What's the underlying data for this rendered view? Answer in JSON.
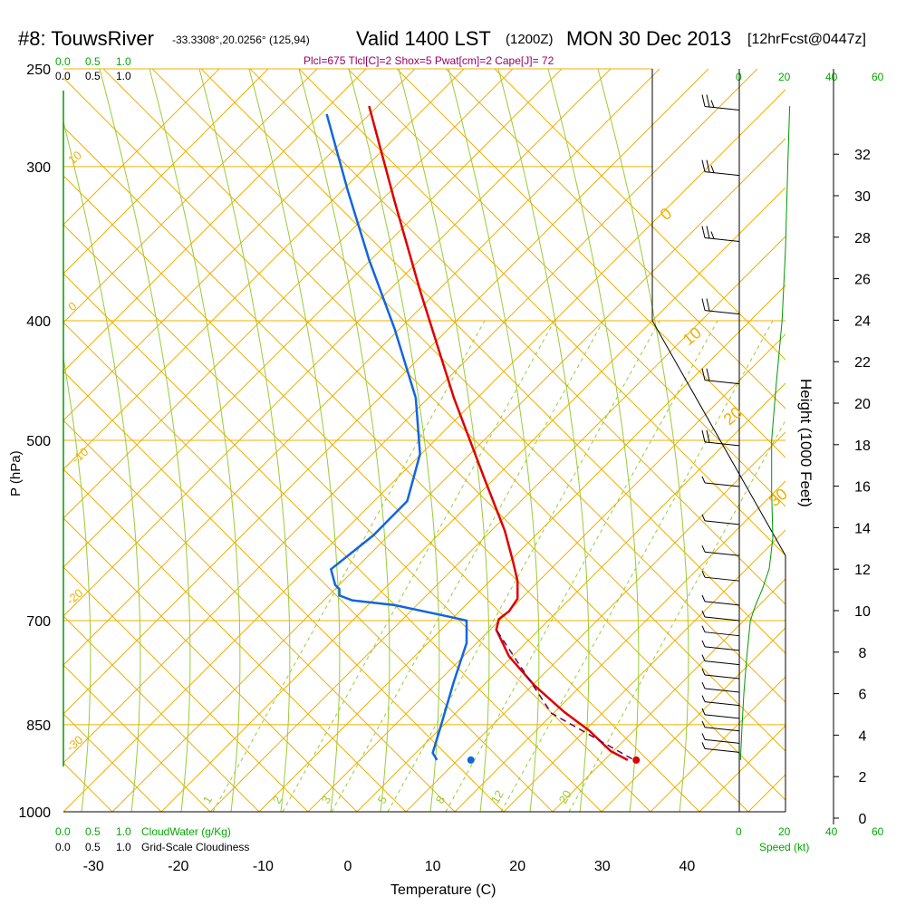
{
  "header": {
    "title": "#8: TouwsRiver",
    "location": "-33.3308°,20.0256° (125,94)",
    "valid": "Valid 1400 LST",
    "utc": "(1200Z)",
    "date": "MON 30 Dec 2013",
    "forecast": "[12hrFcst@0447z]",
    "params": "Plcl=675 Tlcl[C]=2 Shox=5 Pwat[cm]=2 Cape[J]= 72"
  },
  "cloud_scale": {
    "top_green": [
      "0.0",
      "0.5",
      "1.0"
    ],
    "top_black": [
      "0.0",
      "0.5",
      "1.0"
    ],
    "bottom_green": [
      "0.0",
      "0.5",
      "1.0"
    ],
    "bottom_green_label": "CloudWater (g/Kg)",
    "bottom_black": [
      "0.0",
      "0.5",
      "1.0"
    ],
    "bottom_black_label": "Grid-Scale Cloudiness"
  },
  "speed_scale": {
    "top": [
      "0",
      "20",
      "40",
      "60"
    ],
    "bottom": [
      "0",
      "20",
      "40",
      "60"
    ],
    "label": "Speed (kt)"
  },
  "colors": {
    "isotherm": "#f0b000",
    "adiabat": "#99cc33",
    "temp": "#dd0000",
    "dewpoint": "#1166dd",
    "parcel": "#660066",
    "speed": "#009900",
    "labels_green": "#00aa00",
    "params": "#990066"
  },
  "chart_data": {
    "type": "line",
    "xlabel": "Temperature (C)",
    "ylabel": "P (hPa)",
    "y2label": "Height (1000 Feet)",
    "x_ticks": [
      "-30",
      "-20",
      "-10",
      "0",
      "10",
      "20",
      "30",
      "40"
    ],
    "p_ticks": [
      "250",
      "300",
      "400",
      "500",
      "700",
      "850",
      "1000"
    ],
    "height_ticks": [
      "0",
      "2",
      "4",
      "6",
      "8",
      "10",
      "12",
      "14",
      "16",
      "18",
      "20",
      "22",
      "24",
      "26",
      "28",
      "30",
      "32"
    ],
    "isotherm_labels": [
      "10",
      "0",
      "-10",
      "-20",
      "-30",
      "0",
      "10",
      "20",
      "30"
    ],
    "mixing_ratio_labels": [
      "1",
      "2",
      "3",
      "5",
      "8",
      "12",
      "20"
    ],
    "surface_temp": 34.0,
    "surface_dewpoint": 14.5,
    "series": [
      {
        "key": "temperature",
        "points": [
          [
            33.0,
            908
          ],
          [
            31.0,
            893
          ],
          [
            28.5,
            860
          ],
          [
            25.5,
            830
          ],
          [
            22.0,
            790
          ],
          [
            19.0,
            748
          ],
          [
            17.5,
            712
          ],
          [
            17.8,
            698
          ],
          [
            19.0,
            688
          ],
          [
            20.0,
            672
          ],
          [
            20.0,
            650
          ],
          [
            19.5,
            628
          ],
          [
            18.5,
            592
          ],
          [
            16.0,
            535
          ],
          [
            12.5,
            462
          ],
          [
            8.5,
            378
          ],
          [
            5.5,
            320
          ],
          [
            2.5,
            268
          ]
        ]
      },
      {
        "key": "dewpoint",
        "points": [
          [
            10.5,
            908
          ],
          [
            10.0,
            896
          ],
          [
            11.0,
            850
          ],
          [
            12.5,
            784
          ],
          [
            14.0,
            730
          ],
          [
            14.0,
            700
          ],
          [
            12.0,
            695
          ],
          [
            5.5,
            680
          ],
          [
            0.5,
            674
          ],
          [
            -1.0,
            668
          ],
          [
            -1.0,
            660
          ],
          [
            -1.5,
            655
          ],
          [
            -2.0,
            636
          ],
          [
            3.0,
            597
          ],
          [
            7.0,
            560
          ],
          [
            8.5,
            513
          ],
          [
            8.0,
            462
          ],
          [
            5.5,
            406
          ],
          [
            2.5,
            357
          ],
          [
            0.0,
            314
          ],
          [
            -2.5,
            272
          ]
        ]
      },
      {
        "key": "parcel",
        "points": [
          [
            33.5,
            906
          ],
          [
            24.0,
            832
          ],
          [
            17.5,
            712
          ]
        ]
      },
      {
        "key": "wind_speed",
        "points": [
          [
            0.5,
            908
          ],
          [
            1.2,
            850
          ],
          [
            2.0,
            800
          ],
          [
            3.2,
            750
          ],
          [
            4.8,
            700
          ],
          [
            7.0,
            680
          ],
          [
            10.0,
            660
          ],
          [
            13.0,
            635
          ],
          [
            14.5,
            600
          ],
          [
            14.0,
            550
          ],
          [
            14.0,
            500
          ],
          [
            16.0,
            450
          ],
          [
            18.5,
            400
          ],
          [
            20.0,
            350
          ],
          [
            21.0,
            300
          ],
          [
            21.8,
            268
          ]
        ]
      }
    ],
    "wind_barbs": [
      {
        "p": 270,
        "kt": 15
      },
      {
        "p": 305,
        "kt": 15
      },
      {
        "p": 345,
        "kt": 15
      },
      {
        "p": 395,
        "kt": 10
      },
      {
        "p": 450,
        "kt": 10
      },
      {
        "p": 505,
        "kt": 10
      },
      {
        "p": 545,
        "kt": 5
      },
      {
        "p": 585,
        "kt": 5
      },
      {
        "p": 620,
        "kt": 5
      },
      {
        "p": 650,
        "kt": 5
      },
      {
        "p": 680,
        "kt": 5
      },
      {
        "p": 700,
        "kt": 5
      },
      {
        "p": 720,
        "kt": 5
      },
      {
        "p": 740,
        "kt": 5
      },
      {
        "p": 760,
        "kt": 5
      },
      {
        "p": 780,
        "kt": 5
      },
      {
        "p": 800,
        "kt": 5
      },
      {
        "p": 820,
        "kt": 5
      },
      {
        "p": 840,
        "kt": 5
      },
      {
        "p": 860,
        "kt": 5
      },
      {
        "p": 880,
        "kt": 5
      },
      {
        "p": 895,
        "kt": 5
      }
    ]
  }
}
